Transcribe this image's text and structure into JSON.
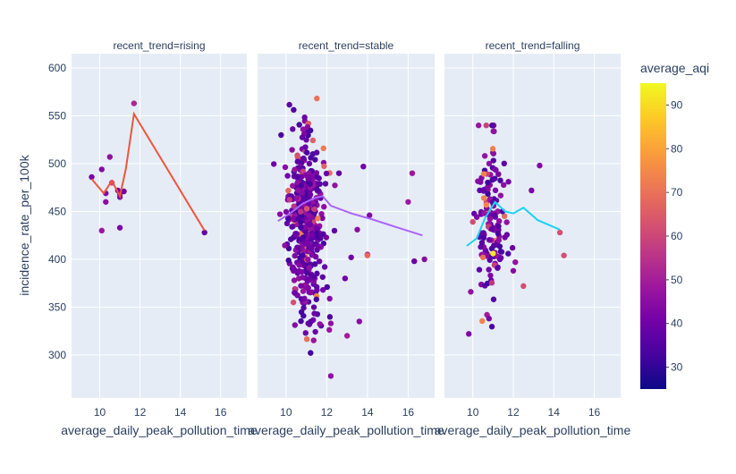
{
  "chart_data": {
    "type": "scatter",
    "xlabel": "average_daily_peak_pollution_time",
    "ylabel": "incidence_rate_per_100k",
    "xlim": [
      8.6,
      17.3
    ],
    "ylim": [
      255,
      615
    ],
    "x_ticks": [
      10,
      12,
      14,
      16
    ],
    "y_ticks": [
      300,
      350,
      400,
      450,
      500,
      550,
      600
    ],
    "grid": true,
    "colorscale": {
      "title": "average_aqi",
      "range": [
        25,
        95
      ],
      "ticks": [
        30,
        40,
        50,
        60,
        70,
        80,
        90
      ],
      "stops": [
        "#0d0887",
        "#46039f",
        "#7201a8",
        "#9c179e",
        "#bd3786",
        "#d8576b",
        "#ed7953",
        "#fb9f3a",
        "#fdca26",
        "#f0f921"
      ]
    },
    "panels": [
      {
        "title": "recent_trend=rising",
        "trend_color": "#ef553b",
        "points": [
          {
            "x": 9.6,
            "y": 486,
            "aqi": 42
          },
          {
            "x": 10.1,
            "y": 494,
            "aqi": 44
          },
          {
            "x": 10.1,
            "y": 430,
            "aqi": 48
          },
          {
            "x": 10.3,
            "y": 469,
            "aqi": 43
          },
          {
            "x": 10.3,
            "y": 460,
            "aqi": 45
          },
          {
            "x": 10.5,
            "y": 507,
            "aqi": 46
          },
          {
            "x": 10.6,
            "y": 480,
            "aqi": 58
          },
          {
            "x": 10.9,
            "y": 472,
            "aqi": 41
          },
          {
            "x": 11.0,
            "y": 468,
            "aqi": 47
          },
          {
            "x": 11.0,
            "y": 465,
            "aqi": 44
          },
          {
            "x": 11.0,
            "y": 433,
            "aqi": 42
          },
          {
            "x": 11.2,
            "y": 471,
            "aqi": 40
          },
          {
            "x": 11.7,
            "y": 563,
            "aqi": 52
          },
          {
            "x": 15.2,
            "y": 428,
            "aqi": 38
          }
        ],
        "trend": [
          {
            "x": 9.6,
            "y": 484
          },
          {
            "x": 10.2,
            "y": 469
          },
          {
            "x": 10.6,
            "y": 482
          },
          {
            "x": 11.0,
            "y": 466
          },
          {
            "x": 11.3,
            "y": 495
          },
          {
            "x": 11.7,
            "y": 552
          },
          {
            "x": 15.2,
            "y": 430
          }
        ]
      },
      {
        "title": "recent_trend=stable",
        "trend_color": "#ab63fa",
        "points": [],
        "trend": [
          {
            "x": 9.6,
            "y": 440
          },
          {
            "x": 10.2,
            "y": 448
          },
          {
            "x": 10.8,
            "y": 458
          },
          {
            "x": 11.4,
            "y": 464
          },
          {
            "x": 11.8,
            "y": 466
          },
          {
            "x": 12.2,
            "y": 456
          },
          {
            "x": 13.2,
            "y": 448
          },
          {
            "x": 14.2,
            "y": 442
          },
          {
            "x": 15.5,
            "y": 433
          },
          {
            "x": 16.7,
            "y": 425
          }
        ]
      },
      {
        "title": "recent_trend=falling",
        "trend_color": "#19d3f3",
        "points": [],
        "trend": [
          {
            "x": 9.7,
            "y": 414
          },
          {
            "x": 10.2,
            "y": 422
          },
          {
            "x": 10.6,
            "y": 443
          },
          {
            "x": 11.1,
            "y": 460
          },
          {
            "x": 11.6,
            "y": 450
          },
          {
            "x": 12.0,
            "y": 448
          },
          {
            "x": 12.5,
            "y": 454
          },
          {
            "x": 13.2,
            "y": 441
          },
          {
            "x": 14.3,
            "y": 431
          }
        ]
      }
    ]
  }
}
